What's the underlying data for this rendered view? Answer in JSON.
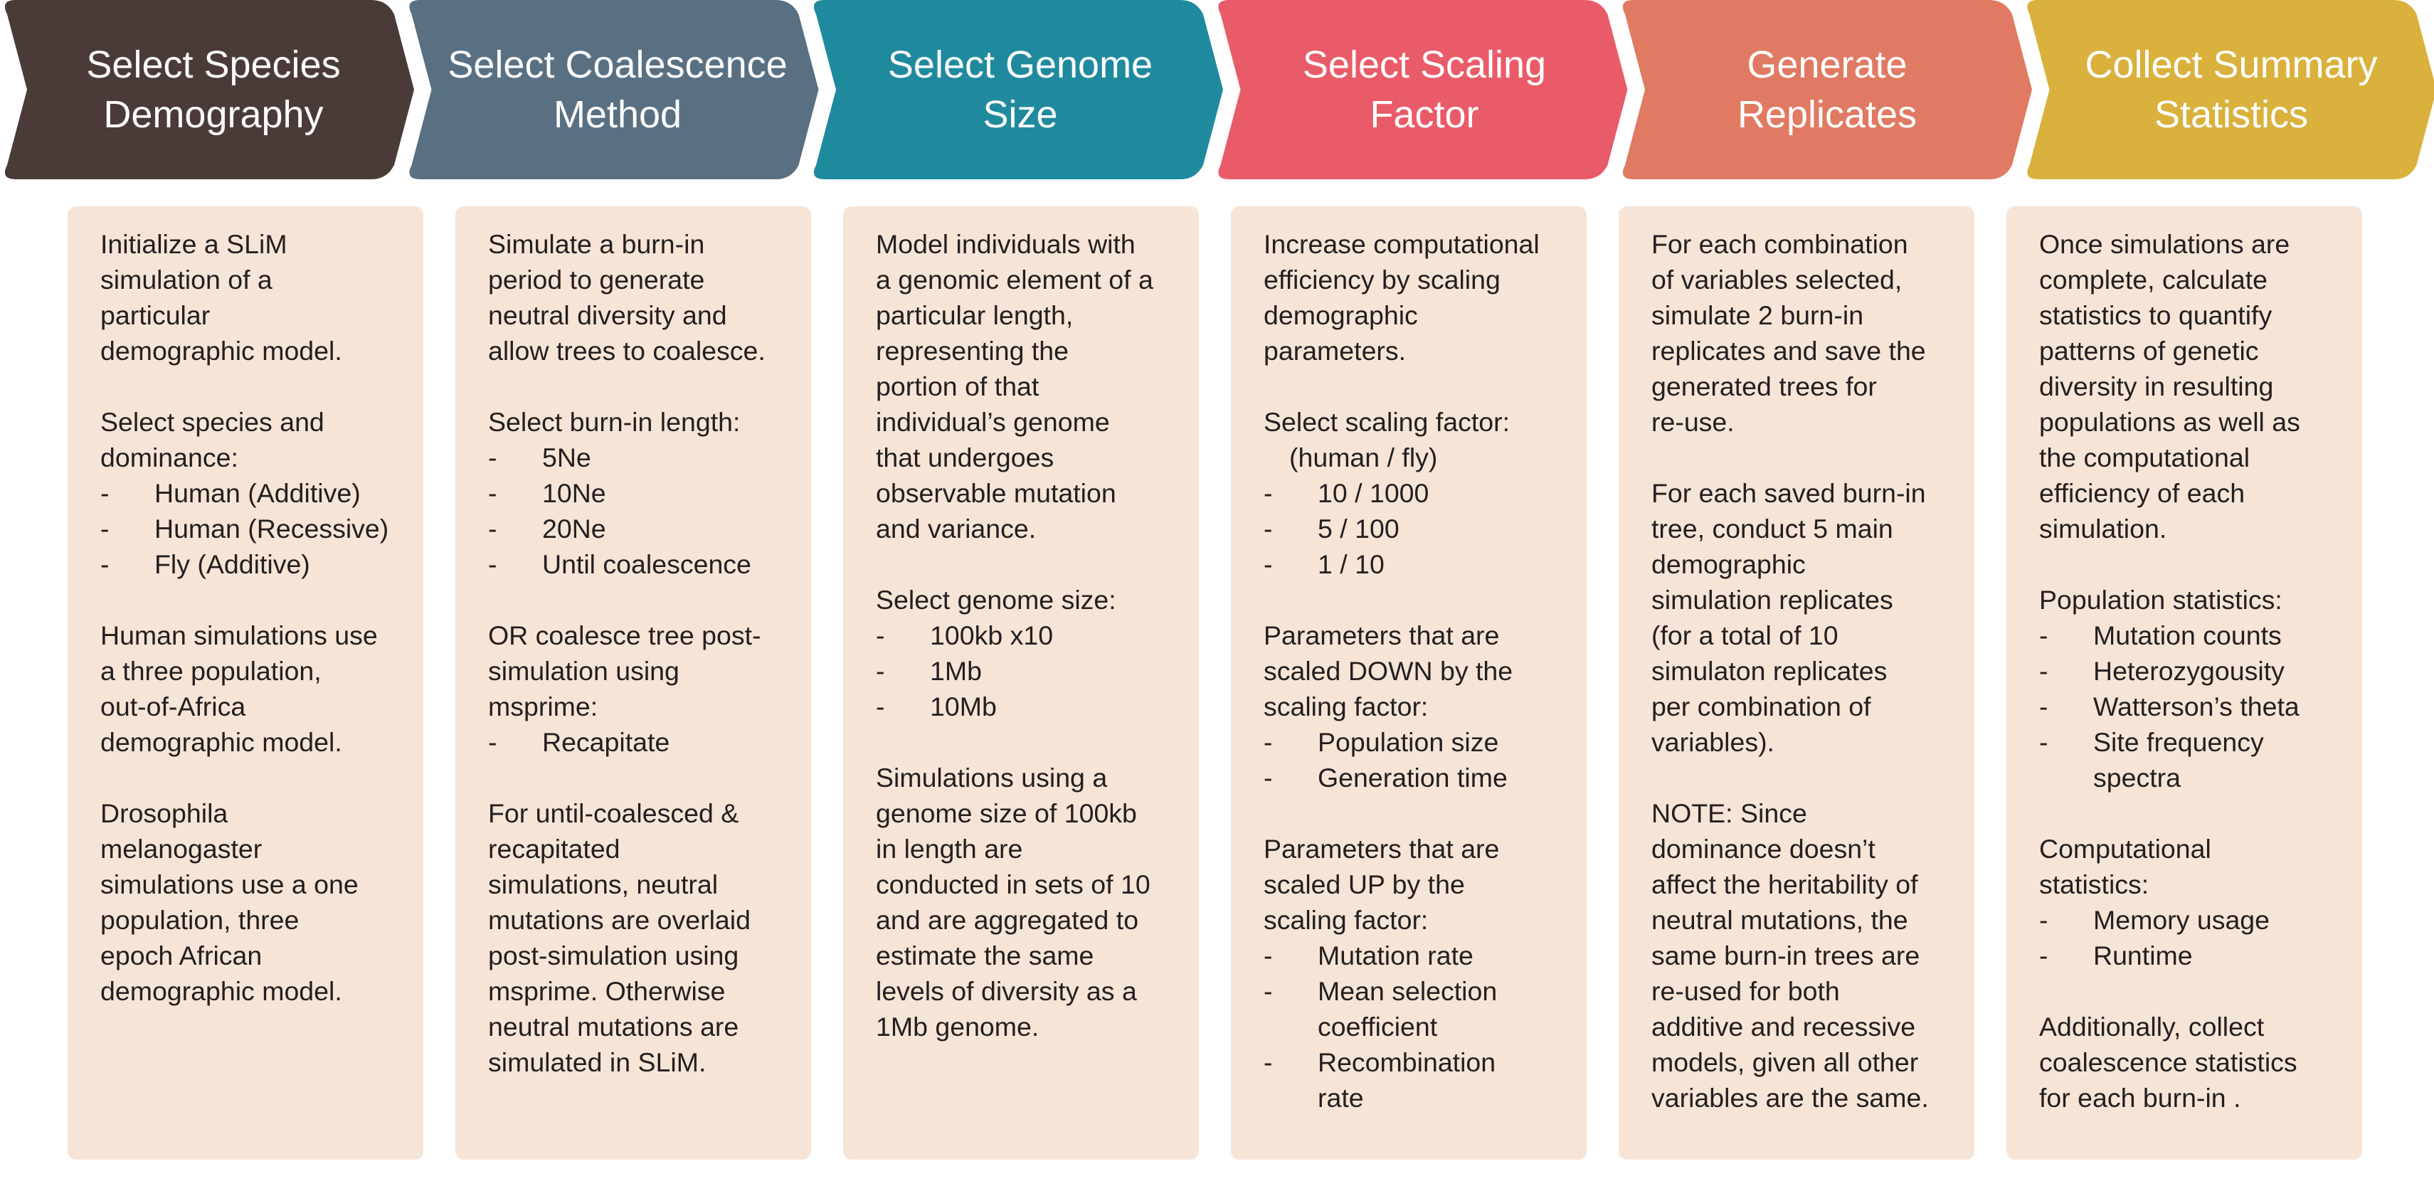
{
  "steps": [
    {
      "title": [
        "Select Species",
        "Demography"
      ],
      "color": "#4a3b39",
      "blocks": [
        {
          "lines": [
            "Initialize a SLiM",
            "simulation of a",
            "particular",
            "demographic model."
          ]
        },
        {
          "lines": [
            "Select species and",
            "dominance:"
          ],
          "bullets": [
            [
              "Human (Additive)"
            ],
            [
              "Human (Recessive)"
            ],
            [
              "Fly (Additive)"
            ]
          ]
        },
        {
          "lines": [
            "Human simulations use",
            "a three population,",
            "out-of-Africa",
            "demographic model."
          ]
        },
        {
          "lines": [
            "Drosophila",
            "melanogaster",
            "simulations use a one",
            "population, three",
            "epoch African",
            "demographic model."
          ]
        }
      ]
    },
    {
      "title": [
        "Select Coalescence",
        "Method"
      ],
      "color": "#597083",
      "blocks": [
        {
          "lines": [
            "Simulate a burn-in",
            "period to generate",
            "neutral diversity and",
            "allow trees to coalesce."
          ]
        },
        {
          "lines": [
            "Select burn-in length:"
          ],
          "bullets": [
            [
              "5Ne"
            ],
            [
              "10Ne"
            ],
            [
              "20Ne"
            ],
            [
              "Until coalescence"
            ]
          ]
        },
        {
          "lines": [
            "OR coalesce tree post-",
            "simulation using",
            "msprime:"
          ],
          "bullets": [
            [
              "Recapitate"
            ]
          ]
        },
        {
          "lines": [
            "For until-coalesced &",
            "recapitated",
            "simulations, neutral",
            "mutations are overlaid",
            "post-simulation using",
            "msprime. Otherwise",
            "neutral mutations are",
            "simulated in SLiM."
          ]
        }
      ]
    },
    {
      "title": [
        "Select Genome",
        "Size"
      ],
      "color": "#1f8a9e",
      "blocks": [
        {
          "lines": [
            "Model individuals with",
            "a genomic element of a",
            "particular length,",
            "representing the",
            "portion of that",
            "individual’s genome",
            "that undergoes",
            "observable mutation",
            "and variance."
          ]
        },
        {
          "lines": [
            "Select genome size:"
          ],
          "bullets": [
            [
              "100kb x10"
            ],
            [
              "1Mb"
            ],
            [
              "10Mb"
            ]
          ]
        },
        {
          "lines": [
            "Simulations using a",
            "genome size of 100kb",
            "in length are",
            "conducted in sets of 10",
            "and are aggregated to",
            "estimate the same",
            "levels of diversity as a",
            "1Mb genome."
          ]
        }
      ]
    },
    {
      "title": [
        "Select Scaling",
        "Factor"
      ],
      "color": "#ea5b69",
      "blocks": [
        {
          "lines": [
            "Increase computational",
            "efficiency by scaling",
            "demographic",
            "parameters."
          ]
        },
        {
          "lines": [
            "Select scaling factor:"
          ],
          "indented": [
            "(human / fly)"
          ],
          "bullets": [
            [
              "10 / 1000"
            ],
            [
              "5 / 100"
            ],
            [
              "1 / 10"
            ]
          ]
        },
        {
          "lines": [
            "Parameters that are",
            "scaled DOWN by the",
            "scaling factor:"
          ],
          "bullets": [
            [
              "Population size"
            ],
            [
              "Generation time"
            ]
          ]
        },
        {
          "lines": [
            "Parameters that are",
            "scaled UP by the",
            "scaling factor:"
          ],
          "bullets": [
            [
              "Mutation rate"
            ],
            [
              "Mean selection",
              "coefficient"
            ],
            [
              "Recombination",
              "rate"
            ]
          ]
        }
      ]
    },
    {
      "title": [
        "Generate",
        "Replicates"
      ],
      "color": "#e07a62",
      "blocks": [
        {
          "lines": [
            "For each combination",
            "of variables selected,",
            "simulate 2 burn-in",
            "replicates and save the",
            "generated trees for",
            "re-use."
          ]
        },
        {
          "lines": [
            "For each saved burn-in",
            "tree, conduct 5 main",
            "demographic",
            "simulation replicates",
            "(for a total of 10",
            "simulaton replicates",
            "per combination of",
            "variables)."
          ]
        },
        {
          "lines": [
            "NOTE: Since",
            "dominance doesn’t",
            "affect the heritability of",
            "neutral mutations, the",
            "same burn-in trees are",
            "re-used for both",
            "additive and recessive",
            "models, given all other",
            "variables are the same."
          ]
        }
      ]
    },
    {
      "title": [
        "Collect Summary",
        "Statistics"
      ],
      "color": "#d9b13c",
      "blocks": [
        {
          "lines": [
            "Once simulations are",
            "complete, calculate",
            "statistics to quantify",
            "patterns of genetic",
            "diversity in resulting",
            "populations as well as",
            "the computational",
            "efficiency of each",
            "simulation."
          ]
        },
        {
          "lines": [
            "Population statistics:"
          ],
          "bullets": [
            [
              "Mutation counts"
            ],
            [
              "Heterozygousity"
            ],
            [
              "Watterson’s theta"
            ],
            [
              "Site frequency",
              "spectra"
            ]
          ]
        },
        {
          "lines": [
            "Computational",
            "statistics:"
          ],
          "bullets": [
            [
              "Memory usage"
            ],
            [
              "Runtime"
            ]
          ]
        },
        {
          "lines": [
            "Additionally, collect",
            "coalescence statistics",
            "for each burn-in ."
          ]
        }
      ]
    }
  ]
}
